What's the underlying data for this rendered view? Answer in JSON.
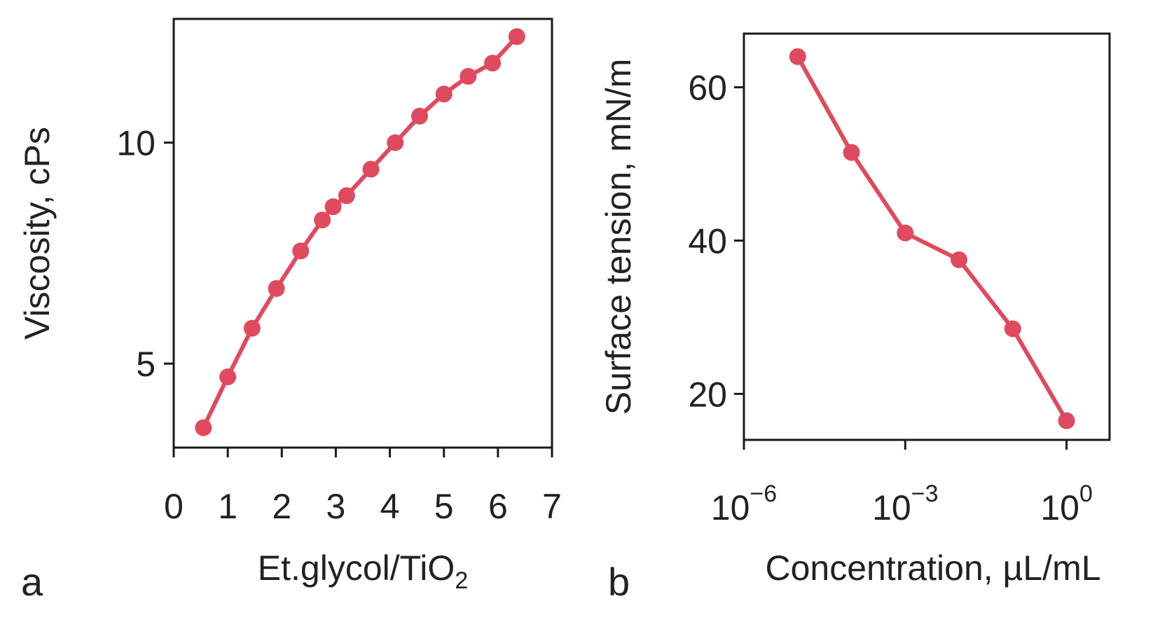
{
  "chart_data": [
    {
      "type": "line",
      "panel_label": "a",
      "title": "",
      "xlabel": "Et.glycol/TiO",
      "xlabel_subscript": "2",
      "ylabel": "Viscosity, cPs",
      "xlim": [
        0,
        7
      ],
      "ylim": [
        3.1,
        12.8
      ],
      "xticks": [
        "0",
        "1",
        "2",
        "3",
        "4",
        "5",
        "6",
        "7"
      ],
      "yticks": [
        "5",
        "10"
      ],
      "series": [
        {
          "name": "viscosity",
          "color": "#e04a5f",
          "x": [
            0.55,
            1.0,
            1.45,
            1.9,
            2.35,
            2.75,
            2.95,
            3.2,
            3.65,
            4.1,
            4.55,
            5.0,
            5.45,
            5.9,
            6.35
          ],
          "y": [
            3.55,
            4.7,
            5.8,
            6.7,
            7.55,
            8.25,
            8.55,
            8.8,
            9.4,
            10.0,
            10.6,
            11.1,
            11.5,
            11.8,
            12.4
          ]
        }
      ]
    },
    {
      "type": "line",
      "panel_label": "b",
      "title": "",
      "xlabel": "Concentration, µL/mL",
      "ylabel": "Surface tension, mN/m",
      "xscale": "log",
      "xlim_log10": [
        -6,
        0.8
      ],
      "ylim": [
        14,
        67
      ],
      "xticks": [
        {
          "base": "10",
          "exp": "−6"
        },
        {
          "base": "10",
          "exp": "−3"
        },
        {
          "base": "10",
          "exp": "0"
        }
      ],
      "yticks": [
        "20",
        "40",
        "60"
      ],
      "series": [
        {
          "name": "surface tension",
          "color": "#e04a5f",
          "x_log10": [
            -5.0,
            -4.0,
            -3.0,
            -2.0,
            -1.0,
            0.0
          ],
          "y": [
            64.0,
            51.5,
            41.0,
            37.5,
            28.5,
            16.5
          ]
        }
      ]
    }
  ]
}
